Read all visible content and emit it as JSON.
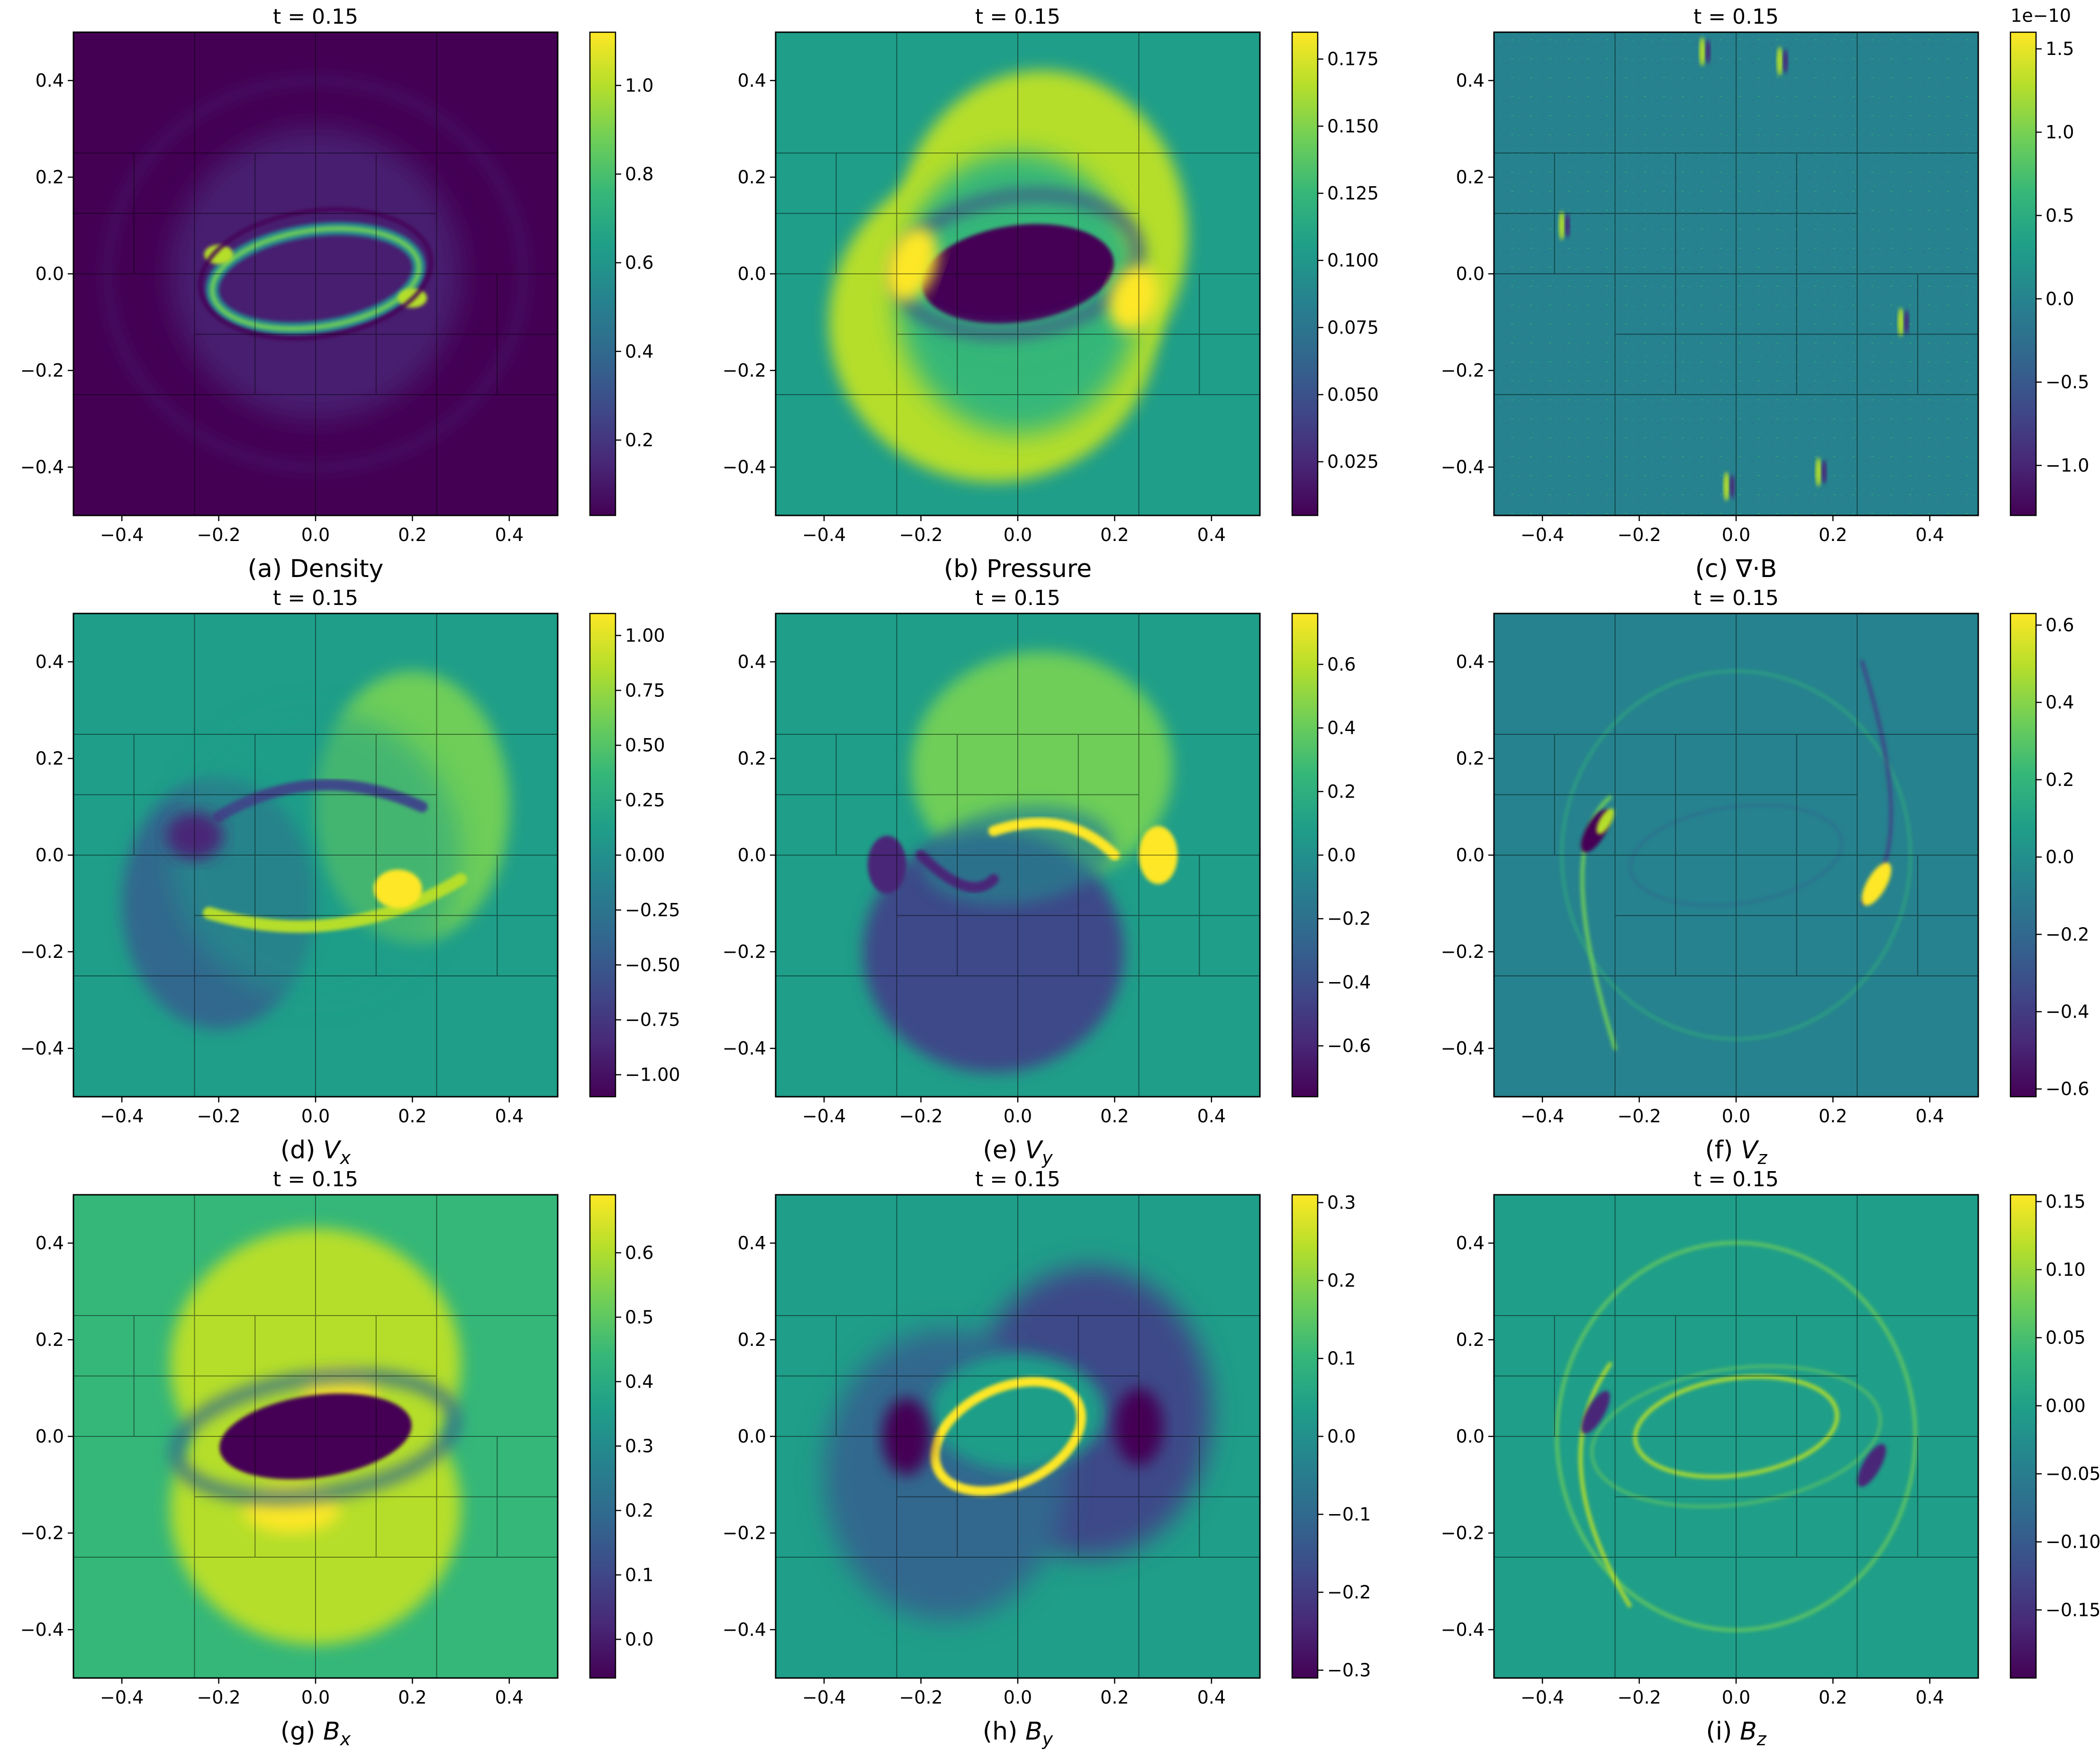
{
  "figure": {
    "colormap": "viridis",
    "colors": {
      "stops": [
        "#440154",
        "#482878",
        "#3e4a89",
        "#31688e",
        "#26828e",
        "#1f9e89",
        "#35b779",
        "#6ece58",
        "#b5de2b",
        "#fde725"
      ],
      "mesh_line": "#000000"
    }
  },
  "chart_data": [
    {
      "id": "a",
      "type": "heatmap",
      "title": "t = 0.15",
      "caption_prefix": "(a) ",
      "caption_main": "Density",
      "caption_sub": "",
      "xlim": [
        -0.5,
        0.5
      ],
      "ylim": [
        -0.5,
        0.5
      ],
      "xticks": [
        "−0.4",
        "−0.2",
        "0.0",
        "0.2",
        "0.4"
      ],
      "yticks": [
        "−0.4",
        "−0.2",
        "0.0",
        "0.2",
        "0.4"
      ],
      "colorbar": {
        "range": [
          0.03,
          1.12
        ],
        "ticks": [
          0.2,
          0.4,
          0.6,
          0.8,
          1.0
        ],
        "tick_labels": [
          "0.2",
          "0.4",
          "0.6",
          "0.8",
          "1.0"
        ],
        "offset": ""
      },
      "background": 0.06,
      "field": "density"
    },
    {
      "id": "b",
      "type": "heatmap",
      "title": "t = 0.15",
      "caption_prefix": "(b) ",
      "caption_main": "Pressure",
      "caption_sub": "",
      "xlim": [
        -0.5,
        0.5
      ],
      "ylim": [
        -0.5,
        0.5
      ],
      "xticks": [
        "−0.4",
        "−0.2",
        "0.0",
        "0.2",
        "0.4"
      ],
      "yticks": [
        "−0.4",
        "−0.2",
        "0.0",
        "0.2",
        "0.4"
      ],
      "colorbar": {
        "range": [
          0.005,
          0.185
        ],
        "ticks": [
          0.025,
          0.05,
          0.075,
          0.1,
          0.125,
          0.15,
          0.175
        ],
        "tick_labels": [
          "0.025",
          "0.050",
          "0.075",
          "0.100",
          "0.125",
          "0.150",
          "0.175"
        ],
        "offset": ""
      },
      "background": 0.1,
      "field": "pressure"
    },
    {
      "id": "c",
      "type": "heatmap",
      "title": "t = 0.15",
      "caption_prefix": "(c) ",
      "caption_main": "∇·B",
      "caption_sub": "",
      "xlim": [
        -0.5,
        0.5
      ],
      "ylim": [
        -0.5,
        0.5
      ],
      "xticks": [
        "−0.4",
        "−0.2",
        "0.0",
        "0.2",
        "0.4"
      ],
      "yticks": [
        "−0.4",
        "−0.2",
        "0.0",
        "0.2",
        "0.4"
      ],
      "colorbar": {
        "range": [
          -1.3,
          1.6
        ],
        "ticks": [
          -1.0,
          -0.5,
          0.0,
          0.5,
          1.0,
          1.5
        ],
        "tick_labels": [
          "−1.0",
          "−0.5",
          "0.0",
          "0.5",
          "1.0",
          "1.5"
        ],
        "offset": "1e−10"
      },
      "background": 0.0,
      "field": "divb"
    },
    {
      "id": "d",
      "type": "heatmap",
      "title": "t = 0.15",
      "caption_prefix": "(d) ",
      "caption_main": "V",
      "caption_sub": "x",
      "xlim": [
        -0.5,
        0.5
      ],
      "ylim": [
        -0.5,
        0.5
      ],
      "xticks": [
        "−0.4",
        "−0.2",
        "0.0",
        "0.2",
        "0.4"
      ],
      "yticks": [
        "−0.4",
        "−0.2",
        "0.0",
        "0.2",
        "0.4"
      ],
      "colorbar": {
        "range": [
          -1.1,
          1.1
        ],
        "ticks": [
          -1.0,
          -0.75,
          -0.5,
          -0.25,
          0.0,
          0.25,
          0.5,
          0.75,
          1.0
        ],
        "tick_labels": [
          "−1.00",
          "−0.75",
          "−0.50",
          "−0.25",
          "0.00",
          "0.25",
          "0.50",
          "0.75",
          "1.00"
        ],
        "offset": ""
      },
      "background": 0.0,
      "field": "vx"
    },
    {
      "id": "e",
      "type": "heatmap",
      "title": "t = 0.15",
      "caption_prefix": "(e) ",
      "caption_main": "V",
      "caption_sub": "y",
      "xlim": [
        -0.5,
        0.5
      ],
      "ylim": [
        -0.5,
        0.5
      ],
      "xticks": [
        "−0.4",
        "−0.2",
        "0.0",
        "0.2",
        "0.4"
      ],
      "yticks": [
        "−0.4",
        "−0.2",
        "0.0",
        "0.2",
        "0.4"
      ],
      "colorbar": {
        "range": [
          -0.76,
          0.76
        ],
        "ticks": [
          -0.6,
          -0.4,
          -0.2,
          0.0,
          0.2,
          0.4,
          0.6
        ],
        "tick_labels": [
          "−0.6",
          "−0.4",
          "−0.2",
          "0.0",
          "0.2",
          "0.4",
          "0.6"
        ],
        "offset": ""
      },
      "background": 0.0,
      "field": "vy"
    },
    {
      "id": "f",
      "type": "heatmap",
      "title": "t = 0.15",
      "caption_prefix": "(f) ",
      "caption_main": "V",
      "caption_sub": "z",
      "xlim": [
        -0.5,
        0.5
      ],
      "ylim": [
        -0.5,
        0.5
      ],
      "xticks": [
        "−0.4",
        "−0.2",
        "0.0",
        "0.2",
        "0.4"
      ],
      "yticks": [
        "−0.4",
        "−0.2",
        "0.0",
        "0.2",
        "0.4"
      ],
      "colorbar": {
        "range": [
          -0.62,
          0.63
        ],
        "ticks": [
          -0.6,
          -0.4,
          -0.2,
          0.0,
          0.2,
          0.4,
          0.6
        ],
        "tick_labels": [
          "−0.6",
          "−0.4",
          "−0.2",
          "0.0",
          "0.2",
          "0.4",
          "0.6"
        ],
        "offset": ""
      },
      "background": 0.0,
      "field": "vz"
    },
    {
      "id": "g",
      "type": "heatmap",
      "title": "t = 0.15",
      "caption_prefix": "(g) ",
      "caption_main": "B",
      "caption_sub": "x",
      "xlim": [
        -0.5,
        0.5
      ],
      "ylim": [
        -0.5,
        0.5
      ],
      "xticks": [
        "−0.4",
        "−0.2",
        "0.0",
        "0.2",
        "0.4"
      ],
      "yticks": [
        "−0.4",
        "−0.2",
        "0.0",
        "0.2",
        "0.4"
      ],
      "colorbar": {
        "range": [
          -0.06,
          0.69
        ],
        "ticks": [
          0.0,
          0.1,
          0.2,
          0.3,
          0.4,
          0.5,
          0.6
        ],
        "tick_labels": [
          "0.0",
          "0.1",
          "0.2",
          "0.3",
          "0.4",
          "0.5",
          "0.6"
        ],
        "offset": ""
      },
      "background": 0.43,
      "field": "bx"
    },
    {
      "id": "h",
      "type": "heatmap",
      "title": "t = 0.15",
      "caption_prefix": "(h) ",
      "caption_main": "B",
      "caption_sub": "y",
      "xlim": [
        -0.5,
        0.5
      ],
      "ylim": [
        -0.5,
        0.5
      ],
      "xticks": [
        "−0.4",
        "−0.2",
        "0.0",
        "0.2",
        "0.4"
      ],
      "yticks": [
        "−0.4",
        "−0.2",
        "0.0",
        "0.2",
        "0.4"
      ],
      "colorbar": {
        "range": [
          -0.31,
          0.31
        ],
        "ticks": [
          -0.3,
          -0.2,
          -0.1,
          0.0,
          0.1,
          0.2,
          0.3
        ],
        "tick_labels": [
          "−0.3",
          "−0.2",
          "−0.1",
          "0.0",
          "0.1",
          "0.2",
          "0.3"
        ],
        "offset": ""
      },
      "background": 0.0,
      "field": "by"
    },
    {
      "id": "i",
      "type": "heatmap",
      "title": "t = 0.15",
      "caption_prefix": "(i) ",
      "caption_main": "B",
      "caption_sub": "z",
      "xlim": [
        -0.5,
        0.5
      ],
      "ylim": [
        -0.5,
        0.5
      ],
      "xticks": [
        "−0.4",
        "−0.2",
        "0.0",
        "0.2",
        "0.4"
      ],
      "yticks": [
        "−0.4",
        "−0.2",
        "0.0",
        "0.2",
        "0.4"
      ],
      "colorbar": {
        "range": [
          -0.2,
          0.155
        ],
        "ticks": [
          -0.15,
          -0.1,
          -0.05,
          0.0,
          0.05,
          0.1,
          0.15
        ],
        "tick_labels": [
          "−0.15",
          "−0.10",
          "−0.05",
          "0.00",
          "0.05",
          "0.10",
          "0.15"
        ],
        "offset": ""
      },
      "background": 0.0,
      "field": "bz"
    }
  ]
}
